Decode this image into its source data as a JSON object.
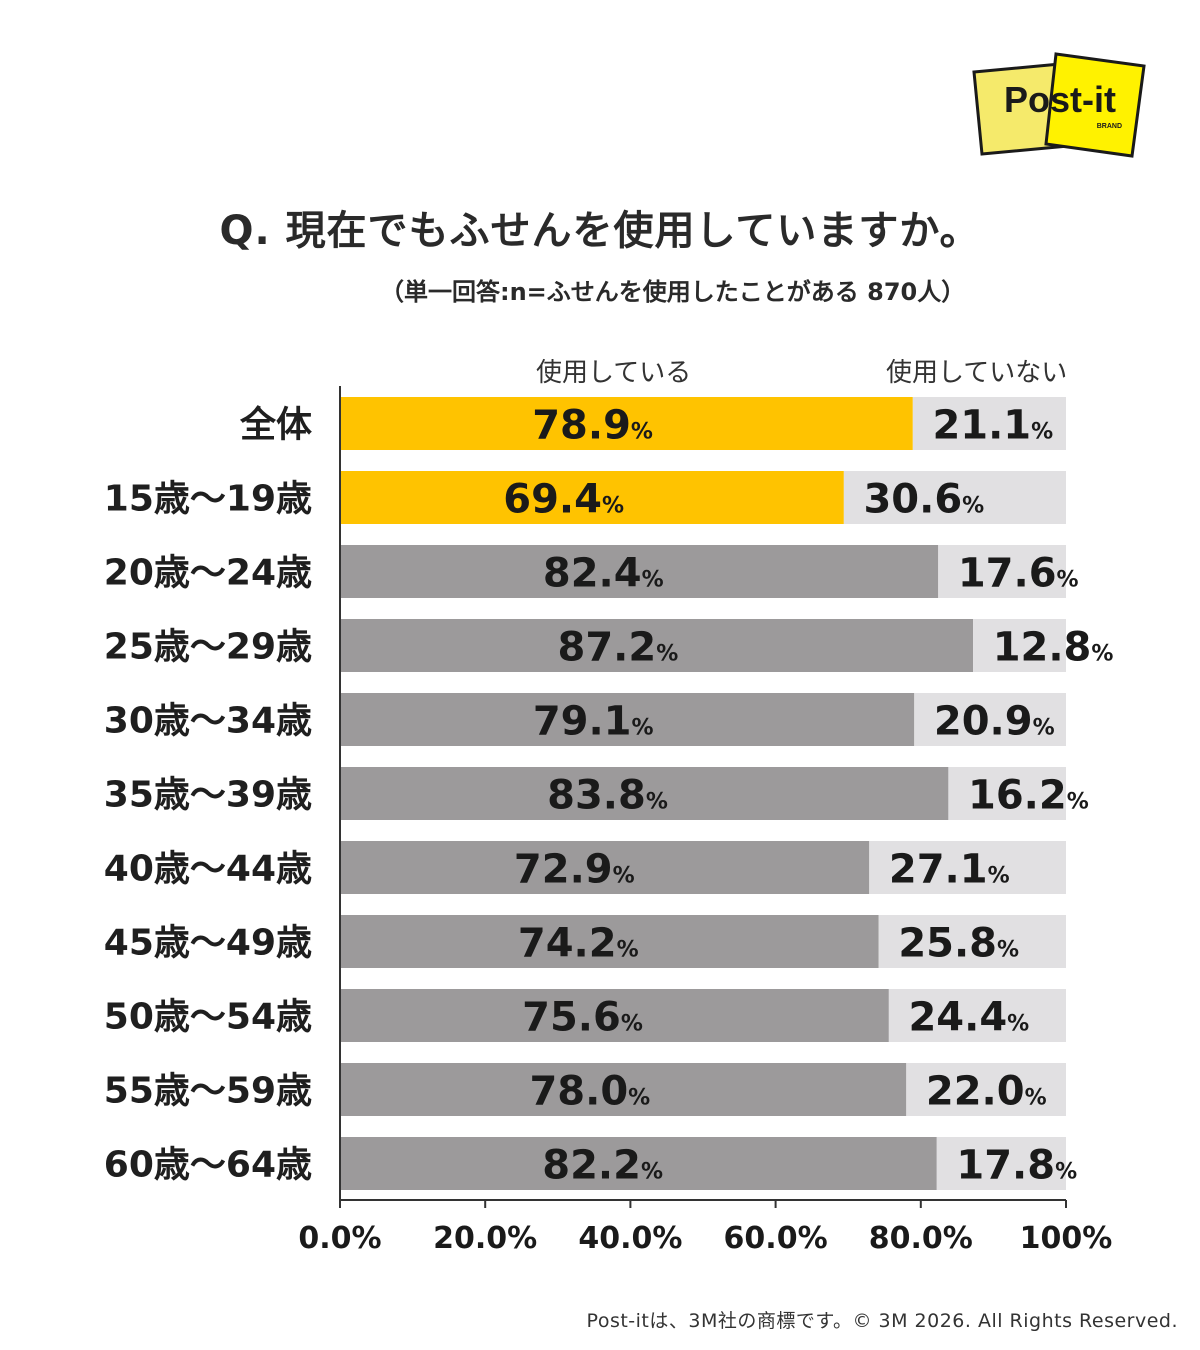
{
  "title": "Q. 現在でもふせんを使用していますか。",
  "subtitle": "（単一回答:n=ふせんを使用したことがある 870人）",
  "logo": {
    "text": "Post-it",
    "subtext": "BRAND",
    "icon": "post-it-logo"
  },
  "copyright": "Post-itは、3M社の商標です。© 3M 2026. All Rights Reserved.",
  "colors": {
    "highlight": "#ffc300",
    "used": "#9c9a9b",
    "unused": "#e1e0e2",
    "logo_front": "#fff200",
    "logo_back": "#f5ea6b"
  },
  "chart_data": {
    "type": "bar",
    "orientation": "horizontal",
    "stacked": true,
    "categories": [
      "全体",
      "15歳〜19歳",
      "20歳〜24歳",
      "25歳〜29歳",
      "30歳〜34歳",
      "35歳〜39歳",
      "40歳〜44歳",
      "45歳〜49歳",
      "50歳〜54歳",
      "55歳〜59歳",
      "60歳〜64歳"
    ],
    "highlighted_categories": [
      "全体",
      "15歳〜19歳"
    ],
    "series": [
      {
        "name": "使用している",
        "values": [
          78.9,
          69.4,
          82.4,
          87.2,
          79.1,
          83.8,
          72.9,
          74.2,
          75.6,
          78.0,
          82.2
        ]
      },
      {
        "name": "使用していない",
        "values": [
          21.1,
          30.6,
          17.6,
          12.8,
          20.9,
          16.2,
          27.1,
          25.8,
          24.4,
          22.0,
          17.8
        ]
      }
    ],
    "value_suffix": "%",
    "xlim": [
      0,
      100
    ],
    "xticks": [
      "0.0%",
      "20.0%",
      "40.0%",
      "60.0%",
      "80.0%",
      "100%"
    ],
    "legend_position": "top",
    "grid": false
  }
}
